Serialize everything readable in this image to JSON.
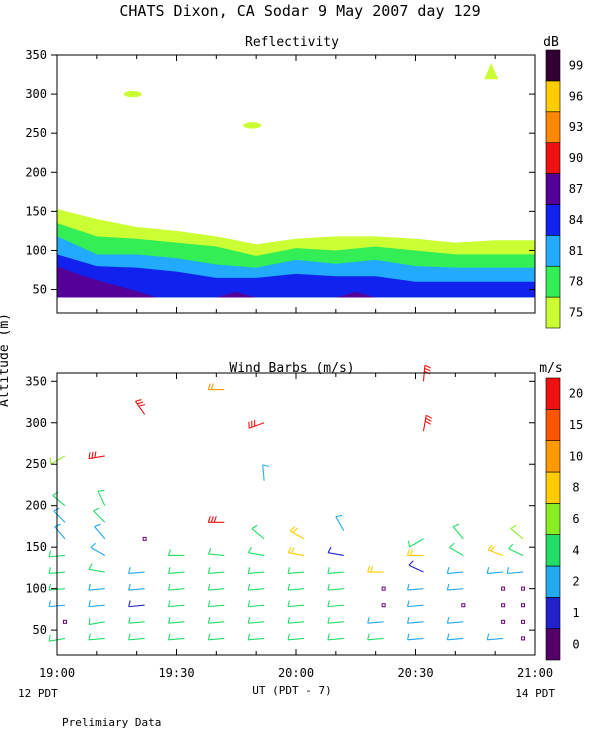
{
  "title": "CHATS Dixon, CA  Sodar   9 May 2007  day 129",
  "ylabel": "Altitude (m)",
  "xlabel": "UT  (PDT - 7)",
  "left_time_label": "12 PDT",
  "right_time_label": "14 PDT",
  "footer": "Prelimiary Data",
  "x_ticks": [
    "19:00",
    "19:30",
    "20:00",
    "20:30",
    "21:00"
  ],
  "chart_data": [
    {
      "type": "area",
      "title": "Reflectivity",
      "units_label": "dB",
      "x_unit": "minutes after 19:00 UT",
      "xlim": [
        0,
        120
      ],
      "ylim": [
        20,
        350
      ],
      "y_ticks": [
        50,
        100,
        150,
        200,
        250,
        300,
        350
      ],
      "colorbar_ticks": [
        "75",
        "78",
        "81",
        "84",
        "87",
        "90",
        "93",
        "96",
        "99"
      ],
      "colorbar_colors": [
        "#ccff33",
        "#33ee55",
        "#22aaff",
        "#1122ee",
        "#550099",
        "#ee1111",
        "#ff8800",
        "#ffcc00",
        "#330033"
      ],
      "layers": [
        {
          "level": "75",
          "color": "#ccff33",
          "x": [
            0,
            10,
            20,
            30,
            40,
            50,
            60,
            70,
            80,
            90,
            100,
            110,
            120
          ],
          "top": [
            153,
            140,
            130,
            125,
            118,
            108,
            115,
            118,
            118,
            115,
            110,
            113,
            113
          ]
        },
        {
          "level": "78",
          "color": "#33ee55",
          "x": [
            0,
            10,
            20,
            30,
            40,
            50,
            60,
            70,
            80,
            90,
            100,
            110,
            120
          ],
          "top": [
            135,
            118,
            115,
            110,
            105,
            93,
            103,
            100,
            105,
            100,
            95,
            95,
            95
          ]
        },
        {
          "level": "81",
          "color": "#22aaff",
          "x": [
            0,
            10,
            20,
            30,
            40,
            50,
            60,
            70,
            80,
            90,
            100,
            110,
            120
          ],
          "top": [
            118,
            95,
            95,
            90,
            82,
            78,
            88,
            83,
            88,
            80,
            78,
            78,
            78
          ]
        },
        {
          "level": "84",
          "color": "#1122ee",
          "x": [
            0,
            10,
            20,
            30,
            40,
            50,
            60,
            70,
            80,
            90,
            100,
            110,
            120
          ],
          "top": [
            95,
            80,
            78,
            73,
            65,
            65,
            70,
            67,
            67,
            60,
            60,
            60,
            60
          ]
        },
        {
          "level": "87",
          "color": "#550099",
          "x": [
            0,
            5,
            10,
            15,
            20,
            25,
            30,
            35,
            40,
            45,
            50,
            55,
            60,
            65,
            70,
            75,
            80,
            85,
            90,
            120
          ],
          "top": [
            80,
            70,
            62,
            55,
            48,
            40,
            40,
            40,
            40,
            47,
            40,
            40,
            40,
            40,
            40,
            47,
            40,
            40,
            40,
            40
          ]
        }
      ],
      "surface_floor": 40,
      "echoes": [
        {
          "x": 19,
          "y": 300,
          "color": "#ccff33"
        },
        {
          "x": 49,
          "y": 260,
          "color": "#ccff33"
        },
        {
          "x": 109,
          "y": 328,
          "color": "#ccff33"
        }
      ]
    },
    {
      "type": "scatter",
      "title": "Wind Barbs (m/s)",
      "units_label": "m/s",
      "x_unit": "minutes after 19:00 UT",
      "xlim": [
        0,
        120
      ],
      "ylim": [
        20,
        360
      ],
      "y_ticks": [
        50,
        100,
        150,
        200,
        250,
        300,
        350
      ],
      "colorbar_ticks": [
        "0",
        "1",
        "2",
        "4",
        "6",
        "8",
        "10",
        "15",
        "20"
      ],
      "colorbar_colors": [
        "#550066",
        "#2222cc",
        "#22aaee",
        "#22dd66",
        "#88ee22",
        "#ffcc00",
        "#ff9900",
        "#ff5500",
        "#ee1111"
      ],
      "barbs": [
        {
          "x": 2,
          "y": 40,
          "deg": 260,
          "spd": 4
        },
        {
          "x": 2,
          "y": 60,
          "deg": 0,
          "spd": 0
        },
        {
          "x": 2,
          "y": 80,
          "deg": 265,
          "spd": 2
        },
        {
          "x": 2,
          "y": 100,
          "deg": 265,
          "spd": 4
        },
        {
          "x": 2,
          "y": 120,
          "deg": 265,
          "spd": 4
        },
        {
          "x": 2,
          "y": 140,
          "deg": 265,
          "spd": 4
        },
        {
          "x": 2,
          "y": 160,
          "deg": 320,
          "spd": 3
        },
        {
          "x": 2,
          "y": 180,
          "deg": 315,
          "spd": 3
        },
        {
          "x": 2,
          "y": 200,
          "deg": 310,
          "spd": 5
        },
        {
          "x": 2,
          "y": 260,
          "deg": 240,
          "spd": 6
        },
        {
          "x": 12,
          "y": 40,
          "deg": 265,
          "spd": 4
        },
        {
          "x": 12,
          "y": 60,
          "deg": 260,
          "spd": 4
        },
        {
          "x": 12,
          "y": 80,
          "deg": 265,
          "spd": 2
        },
        {
          "x": 12,
          "y": 100,
          "deg": 265,
          "spd": 2
        },
        {
          "x": 12,
          "y": 120,
          "deg": 280,
          "spd": 5
        },
        {
          "x": 12,
          "y": 140,
          "deg": 300,
          "spd": 3
        },
        {
          "x": 12,
          "y": 160,
          "deg": 320,
          "spd": 3
        },
        {
          "x": 12,
          "y": 180,
          "deg": 315,
          "spd": 5
        },
        {
          "x": 12,
          "y": 200,
          "deg": 335,
          "spd": 5
        },
        {
          "x": 12,
          "y": 260,
          "deg": 260,
          "spd": 20
        },
        {
          "x": 22,
          "y": 40,
          "deg": 265,
          "spd": 4
        },
        {
          "x": 22,
          "y": 60,
          "deg": 265,
          "spd": 4
        },
        {
          "x": 22,
          "y": 80,
          "deg": 265,
          "spd": 1
        },
        {
          "x": 22,
          "y": 100,
          "deg": 265,
          "spd": 2
        },
        {
          "x": 22,
          "y": 120,
          "deg": 265,
          "spd": 3
        },
        {
          "x": 22,
          "y": 160,
          "deg": 0,
          "spd": 0
        },
        {
          "x": 22,
          "y": 310,
          "deg": 325,
          "spd": 20
        },
        {
          "x": 32,
          "y": 40,
          "deg": 265,
          "spd": 4
        },
        {
          "x": 32,
          "y": 60,
          "deg": 265,
          "spd": 4
        },
        {
          "x": 32,
          "y": 80,
          "deg": 265,
          "spd": 4
        },
        {
          "x": 32,
          "y": 100,
          "deg": 265,
          "spd": 4
        },
        {
          "x": 32,
          "y": 120,
          "deg": 265,
          "spd": 4
        },
        {
          "x": 32,
          "y": 140,
          "deg": 270,
          "spd": 4
        },
        {
          "x": 42,
          "y": 40,
          "deg": 265,
          "spd": 4
        },
        {
          "x": 42,
          "y": 60,
          "deg": 265,
          "spd": 4
        },
        {
          "x": 42,
          "y": 80,
          "deg": 265,
          "spd": 4
        },
        {
          "x": 42,
          "y": 100,
          "deg": 265,
          "spd": 4
        },
        {
          "x": 42,
          "y": 120,
          "deg": 265,
          "spd": 4
        },
        {
          "x": 42,
          "y": 140,
          "deg": 275,
          "spd": 4
        },
        {
          "x": 42,
          "y": 180,
          "deg": 270,
          "spd": 20
        },
        {
          "x": 42,
          "y": 340,
          "deg": 270,
          "spd": 10
        },
        {
          "x": 52,
          "y": 40,
          "deg": 265,
          "spd": 4
        },
        {
          "x": 52,
          "y": 60,
          "deg": 265,
          "spd": 4
        },
        {
          "x": 52,
          "y": 80,
          "deg": 265,
          "spd": 4
        },
        {
          "x": 52,
          "y": 100,
          "deg": 265,
          "spd": 4
        },
        {
          "x": 52,
          "y": 120,
          "deg": 265,
          "spd": 4
        },
        {
          "x": 52,
          "y": 140,
          "deg": 280,
          "spd": 4
        },
        {
          "x": 52,
          "y": 160,
          "deg": 310,
          "spd": 5
        },
        {
          "x": 52,
          "y": 230,
          "deg": 355,
          "spd": 2
        },
        {
          "x": 52,
          "y": 300,
          "deg": 250,
          "spd": 20
        },
        {
          "x": 62,
          "y": 40,
          "deg": 265,
          "spd": 4
        },
        {
          "x": 62,
          "y": 60,
          "deg": 265,
          "spd": 4
        },
        {
          "x": 62,
          "y": 80,
          "deg": 265,
          "spd": 4
        },
        {
          "x": 62,
          "y": 100,
          "deg": 265,
          "spd": 4
        },
        {
          "x": 62,
          "y": 120,
          "deg": 265,
          "spd": 4
        },
        {
          "x": 62,
          "y": 140,
          "deg": 280,
          "spd": 8
        },
        {
          "x": 62,
          "y": 160,
          "deg": 300,
          "spd": 8
        },
        {
          "x": 72,
          "y": 40,
          "deg": 265,
          "spd": 4
        },
        {
          "x": 72,
          "y": 60,
          "deg": 265,
          "spd": 4
        },
        {
          "x": 72,
          "y": 80,
          "deg": 265,
          "spd": 4
        },
        {
          "x": 72,
          "y": 100,
          "deg": 265,
          "spd": 4
        },
        {
          "x": 72,
          "y": 120,
          "deg": 265,
          "spd": 4
        },
        {
          "x": 72,
          "y": 140,
          "deg": 280,
          "spd": 1
        },
        {
          "x": 72,
          "y": 170,
          "deg": 330,
          "spd": 2
        },
        {
          "x": 82,
          "y": 40,
          "deg": 265,
          "spd": 4
        },
        {
          "x": 82,
          "y": 60,
          "deg": 265,
          "spd": 3
        },
        {
          "x": 82,
          "y": 80,
          "deg": 0,
          "spd": 0
        },
        {
          "x": 82,
          "y": 100,
          "deg": 0,
          "spd": 0
        },
        {
          "x": 82,
          "y": 120,
          "deg": 270,
          "spd": 8
        },
        {
          "x": 92,
          "y": 40,
          "deg": 265,
          "spd": 2
        },
        {
          "x": 92,
          "y": 60,
          "deg": 265,
          "spd": 2
        },
        {
          "x": 92,
          "y": 80,
          "deg": 265,
          "spd": 2
        },
        {
          "x": 92,
          "y": 100,
          "deg": 265,
          "spd": 2
        },
        {
          "x": 92,
          "y": 120,
          "deg": 295,
          "spd": 1
        },
        {
          "x": 92,
          "y": 140,
          "deg": 270,
          "spd": 8
        },
        {
          "x": 92,
          "y": 160,
          "deg": 240,
          "spd": 4
        },
        {
          "x": 92,
          "y": 290,
          "deg": 10,
          "spd": 20
        },
        {
          "x": 92,
          "y": 350,
          "deg": 5,
          "spd": 20
        },
        {
          "x": 102,
          "y": 40,
          "deg": 265,
          "spd": 2
        },
        {
          "x": 102,
          "y": 60,
          "deg": 265,
          "spd": 2
        },
        {
          "x": 102,
          "y": 80,
          "deg": 0,
          "spd": 0
        },
        {
          "x": 102,
          "y": 100,
          "deg": 265,
          "spd": 2
        },
        {
          "x": 102,
          "y": 120,
          "deg": 265,
          "spd": 2
        },
        {
          "x": 102,
          "y": 140,
          "deg": 300,
          "spd": 4
        },
        {
          "x": 102,
          "y": 160,
          "deg": 320,
          "spd": 4
        },
        {
          "x": 112,
          "y": 40,
          "deg": 265,
          "spd": 2
        },
        {
          "x": 112,
          "y": 60,
          "deg": 0,
          "spd": 0
        },
        {
          "x": 112,
          "y": 80,
          "deg": 0,
          "spd": 0
        },
        {
          "x": 112,
          "y": 100,
          "deg": 0,
          "spd": 0
        },
        {
          "x": 112,
          "y": 120,
          "deg": 265,
          "spd": 2
        },
        {
          "x": 112,
          "y": 140,
          "deg": 290,
          "spd": 8
        },
        {
          "x": 117,
          "y": 40,
          "deg": 0,
          "spd": 0
        },
        {
          "x": 117,
          "y": 60,
          "deg": 0,
          "spd": 0
        },
        {
          "x": 117,
          "y": 80,
          "deg": 0,
          "spd": 0
        },
        {
          "x": 117,
          "y": 100,
          "deg": 0,
          "spd": 0
        },
        {
          "x": 117,
          "y": 120,
          "deg": 265,
          "spd": 2
        },
        {
          "x": 117,
          "y": 140,
          "deg": 295,
          "spd": 4
        },
        {
          "x": 117,
          "y": 160,
          "deg": 310,
          "spd": 6
        }
      ]
    }
  ]
}
